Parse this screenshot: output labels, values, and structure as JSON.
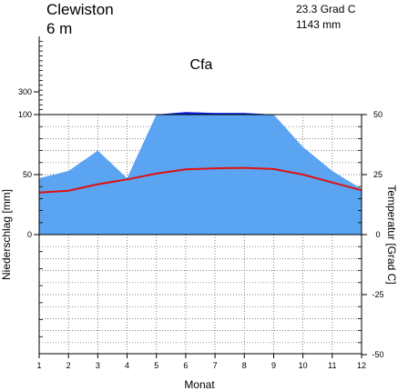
{
  "header": {
    "station": "Clewiston",
    "elevation": "6 m",
    "temp_summary": "23.3 Grad C",
    "precip_summary": "1143 mm",
    "climate_class": "Cfa"
  },
  "chart_data": {
    "type": "area",
    "xlabel": "Monat",
    "ylabel_left": "Niederschlag [mm]",
    "ylabel_right": "Temperatur [Grad C]",
    "categories": [
      "1",
      "2",
      "3",
      "4",
      "5",
      "6",
      "7",
      "8",
      "9",
      "10",
      "11",
      "12"
    ],
    "precip_ticks": [
      "0",
      "50",
      "100",
      "300"
    ],
    "temp_ticks": [
      "50",
      "25",
      "0",
      "-25",
      "-50"
    ],
    "precip_ylim": [
      0,
      100
    ],
    "temp_ylim": [
      -50,
      50
    ],
    "grid": true,
    "series": [
      {
        "values": [
          47,
          53,
          70,
          47,
          100,
          108,
          105,
          105,
          100,
          73,
          53,
          38
        ]
      },
      {
        "values": [
          17.5,
          18.3,
          21,
          23,
          25.4,
          27.2,
          27.6,
          27.8,
          27.3,
          25,
          21.7,
          18.5
        ]
      }
    ],
    "colors": {
      "precip_fill": "#5aa4f2",
      "precip_excess": "#0a1fe0",
      "temperature": "#e01010"
    }
  }
}
